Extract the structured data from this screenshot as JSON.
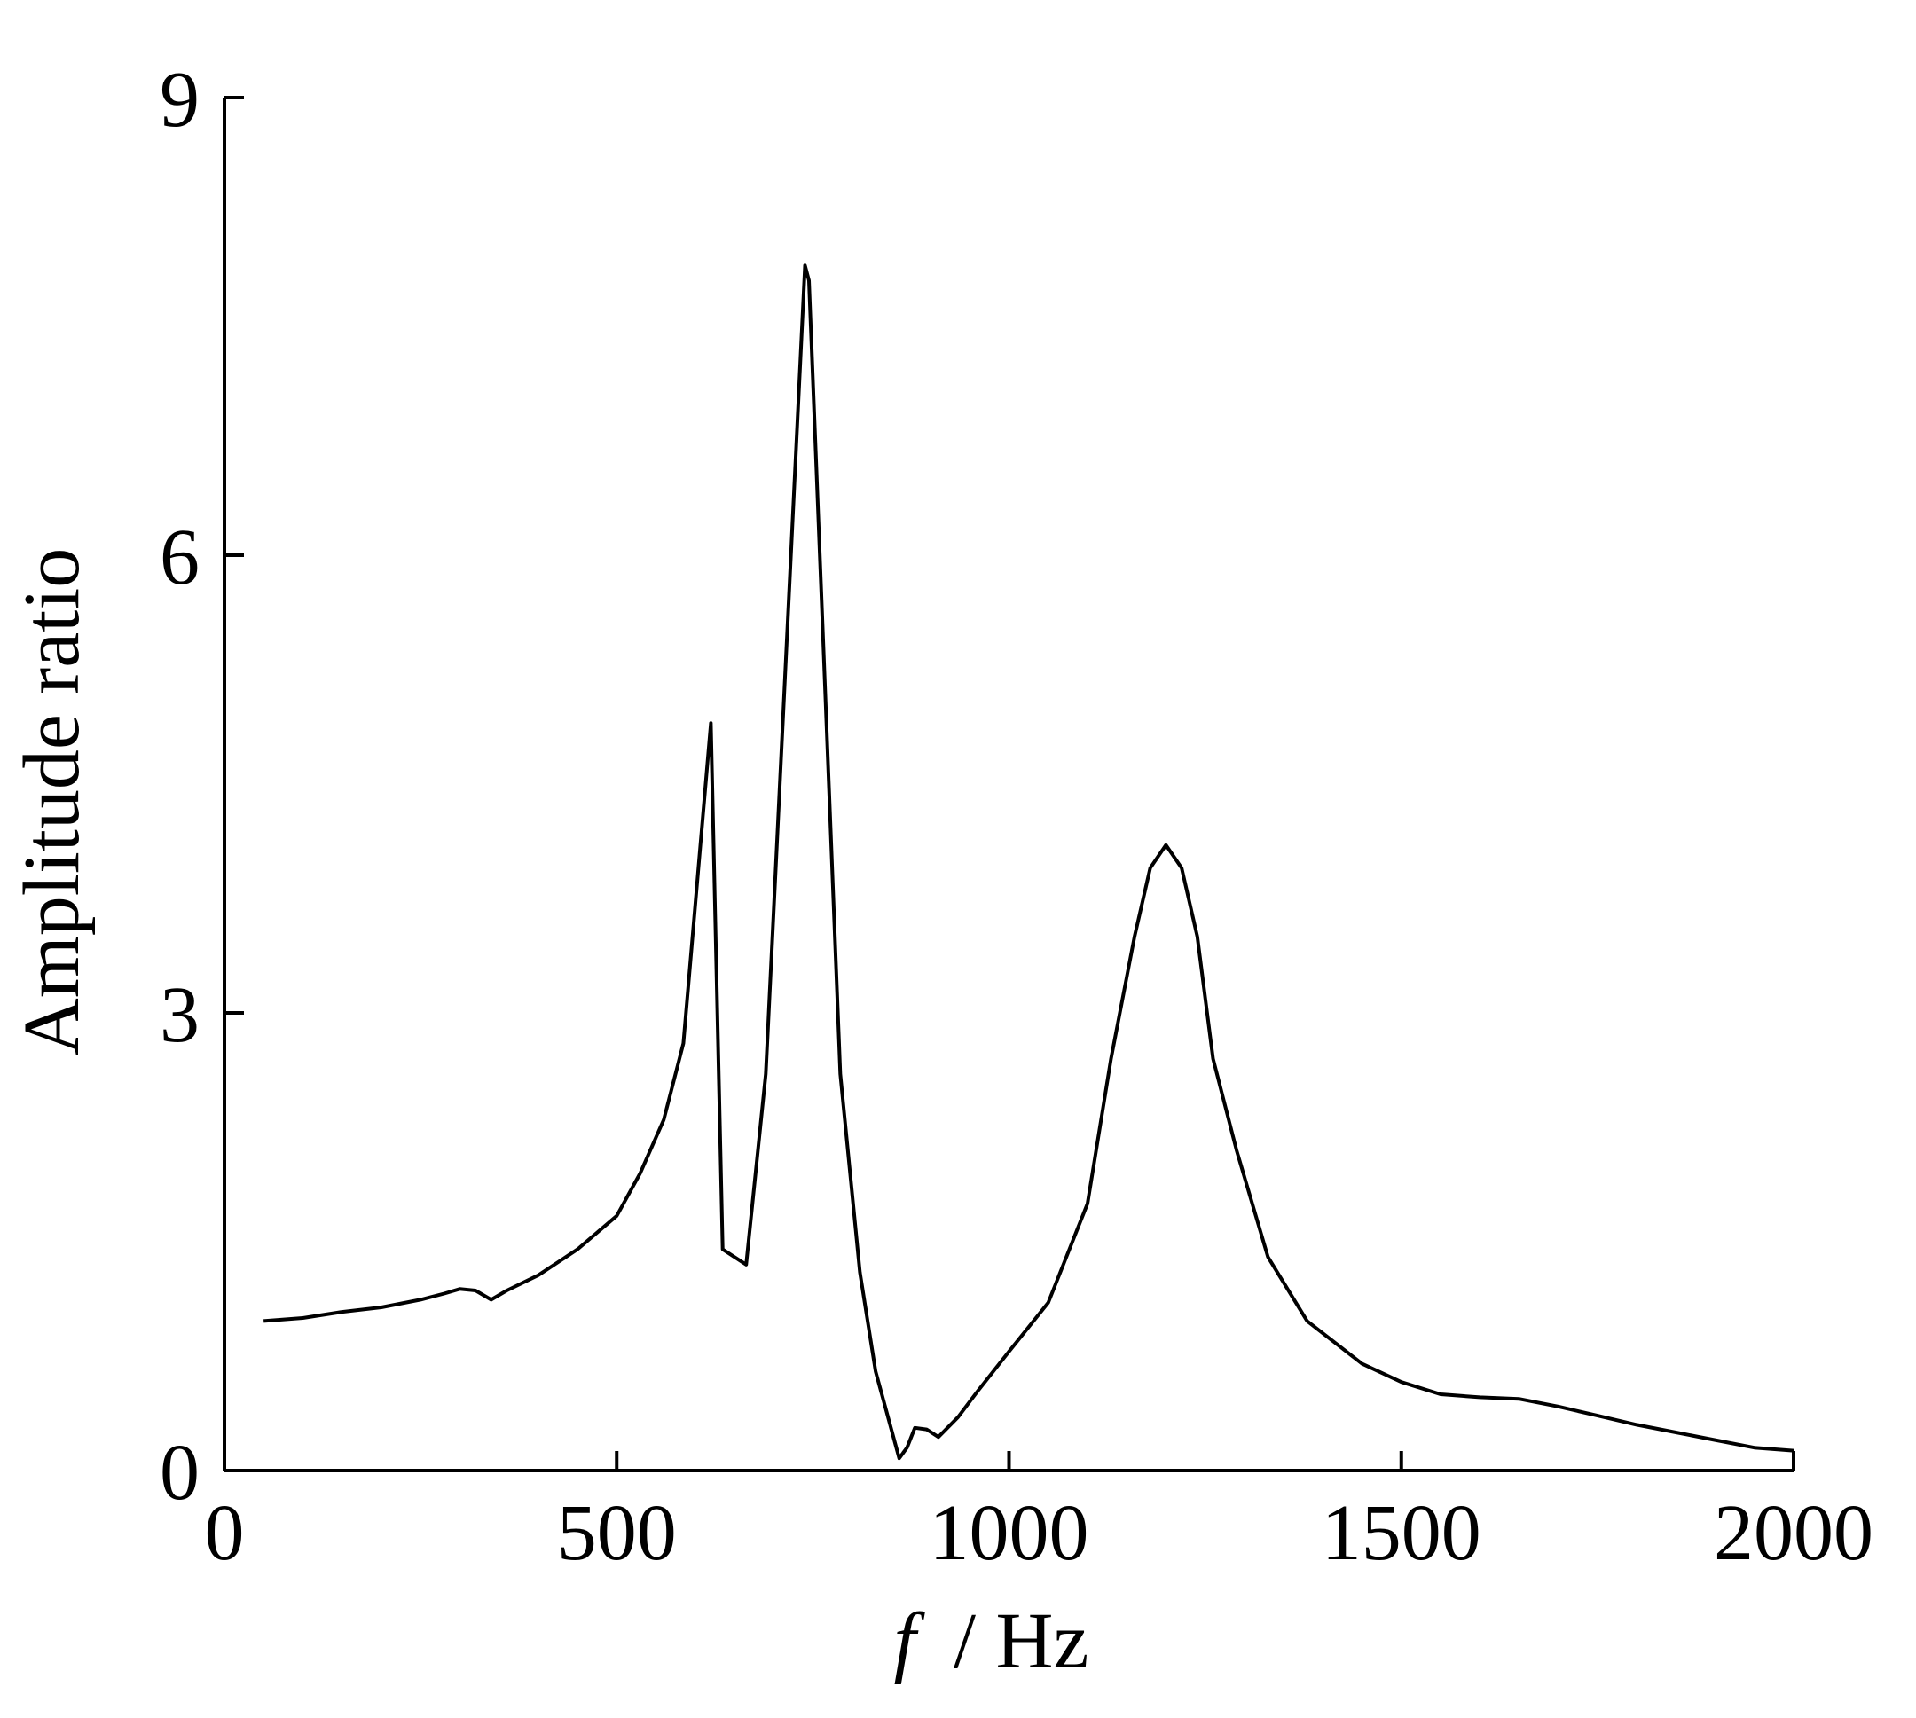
{
  "chart_data": {
    "type": "line",
    "title": "",
    "xlabel_var": "f",
    "xlabel_unit": "/ Hz",
    "ylabel": "Amplitude ratio",
    "xlim": [
      0,
      2000
    ],
    "ylim": [
      0,
      9
    ],
    "xticks": [
      0,
      500,
      1000,
      1500,
      2000
    ],
    "yticks": [
      0,
      3,
      6,
      9
    ],
    "xtick_labels": [
      "0",
      "500",
      "1000",
      "1500",
      "2000"
    ],
    "ytick_labels": [
      "0",
      "3",
      "6",
      "9"
    ],
    "grid": false,
    "legend": "none",
    "line_color": "#000000",
    "series": [
      {
        "x": [
          50,
          100,
          150,
          200,
          250,
          280,
          300,
          320,
          340,
          360,
          400,
          450,
          500,
          530,
          560,
          585,
          620,
          635,
          650,
          665,
          690,
          740,
          745,
          785,
          810,
          830,
          860,
          870,
          880,
          895,
          910,
          935,
          960,
          1000,
          1050,
          1100,
          1130,
          1160,
          1180,
          1200,
          1220,
          1240,
          1260,
          1290,
          1330,
          1380,
          1450,
          1500,
          1550,
          1600,
          1650,
          1700,
          1750,
          1800,
          1850,
          1900,
          1950,
          2000
        ],
        "y": [
          0.98,
          1.0,
          1.04,
          1.07,
          1.12,
          1.16,
          1.19,
          1.18,
          1.12,
          1.18,
          1.28,
          1.45,
          1.67,
          1.95,
          2.3,
          2.8,
          4.9,
          1.45,
          1.4,
          1.35,
          2.6,
          7.9,
          7.8,
          2.6,
          1.3,
          0.65,
          0.08,
          0.15,
          0.28,
          0.27,
          0.22,
          0.35,
          0.52,
          0.78,
          1.1,
          1.75,
          2.7,
          3.5,
          3.95,
          4.1,
          3.95,
          3.5,
          2.7,
          2.1,
          1.4,
          0.98,
          0.7,
          0.58,
          0.5,
          0.48,
          0.47,
          0.42,
          0.36,
          0.3,
          0.25,
          0.2,
          0.15,
          0.13
        ]
      }
    ]
  }
}
